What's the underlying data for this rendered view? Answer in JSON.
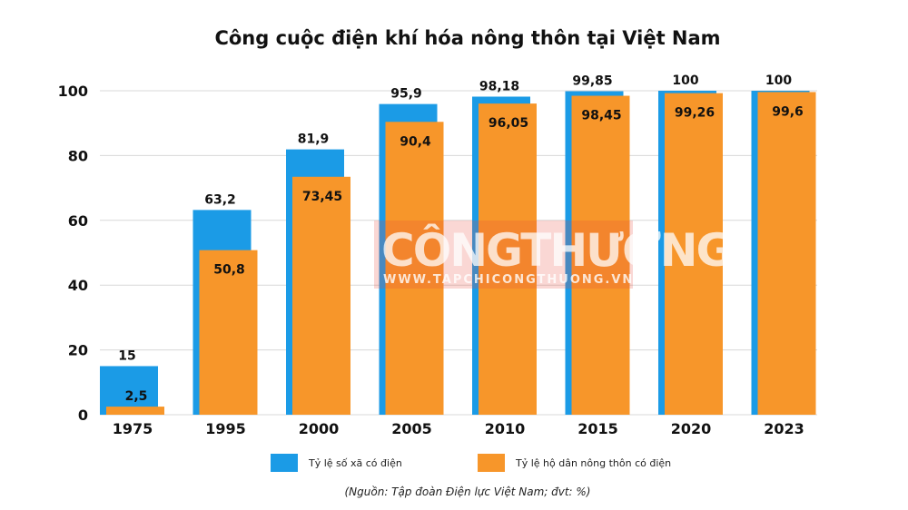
{
  "chart_data": {
    "type": "bar",
    "title": "Công cuộc điện khí hóa nông thôn tại Việt Nam",
    "categories": [
      "1975",
      "1995",
      "2000",
      "2005",
      "2010",
      "2015",
      "2020",
      "2023"
    ],
    "series": [
      {
        "name": "Tỷ lệ số xã có điện",
        "color": "#1b9be6",
        "values": [
          15,
          63.2,
          81.9,
          95.9,
          98.18,
          99.85,
          100,
          100
        ],
        "labels": [
          "15",
          "63,2",
          "81,9",
          "95,9",
          "98,18",
          "99,85",
          "100",
          "100"
        ]
      },
      {
        "name": "Tỷ lệ hộ dân nông thôn có điện",
        "color": "#f7962a",
        "values": [
          2.5,
          50.8,
          73.45,
          90.4,
          96.05,
          98.45,
          99.26,
          99.6
        ],
        "labels": [
          "2,5",
          "50,8",
          "73,45",
          "90,4",
          "96,05",
          "98,45",
          "99,26",
          "99,6"
        ]
      }
    ],
    "yticks": [
      "0",
      "20",
      "40",
      "60",
      "80",
      "100"
    ],
    "ylim": [
      0,
      100
    ],
    "grid": true,
    "legend": "bottom",
    "source": "(Nguồn: Tập đoàn Điện lực Việt Nam; đvt: %)"
  },
  "watermark": {
    "brand": "CÔNGTHƯƠNG",
    "url": "WWW.TAPCHICONGTHUONG.VN"
  }
}
